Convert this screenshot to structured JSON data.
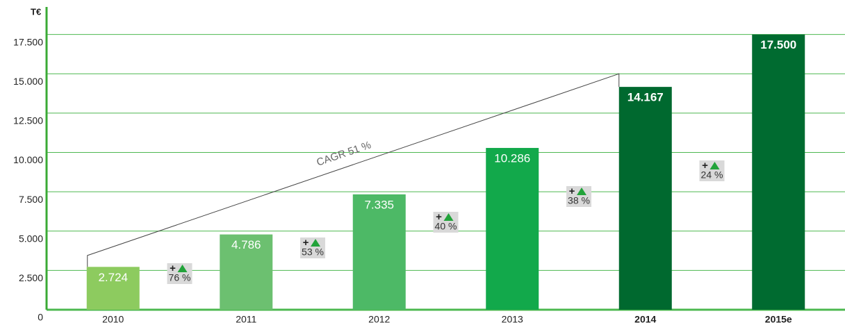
{
  "chart_data": {
    "type": "bar",
    "y_axis_label": "T€",
    "categories": [
      "2010",
      "2011",
      "2012",
      "2013",
      "2014",
      "2015e"
    ],
    "bold": [
      false,
      false,
      false,
      false,
      true,
      true
    ],
    "values": [
      2724,
      4786,
      7335,
      10286,
      14167,
      17500
    ],
    "value_labels": [
      "2.724",
      "4.786",
      "7.335",
      "10.286",
      "14.167",
      "17.500"
    ],
    "colors": [
      "#8dcb5f",
      "#6cc070",
      "#4db966",
      "#12a94b",
      "#00692f",
      "#006b30"
    ],
    "ylim": [
      0,
      19250
    ],
    "yticks": [
      0,
      {
        "value": 2500,
        "label": "2.500"
      },
      {
        "value": 5000,
        "label": "5.000"
      },
      {
        "value": 7500,
        "label": "7.500"
      },
      {
        "value": 10000,
        "label": "10.000"
      },
      {
        "value": 12500,
        "label": "12.500"
      },
      {
        "value": 15000,
        "label": "15.000"
      },
      {
        "value": 17500,
        "label": "17.500"
      }
    ],
    "grid": true,
    "growth": {
      "prefix": "+",
      "values": [
        76,
        53,
        40,
        38,
        24
      ],
      "value_labels": [
        "76 %",
        "53 %",
        "40 %",
        "38 %",
        "24 %"
      ]
    },
    "cagr_label": "CAGR 51 %"
  }
}
